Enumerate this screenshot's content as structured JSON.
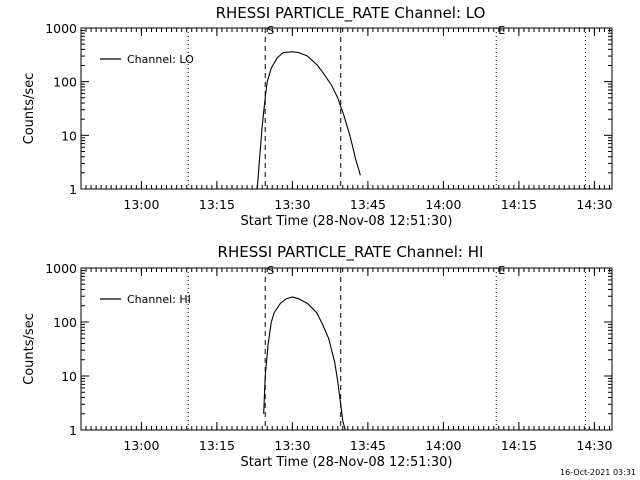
{
  "footer": {
    "timestamp": "16-Oct-2021 03:31"
  },
  "chart_data": [
    {
      "type": "line",
      "title": "RHESSI PARTICLE_RATE Channel: LO",
      "xlabel": "Start Time (28-Nov-08 12:51:30)",
      "ylabel": "Counts/sec",
      "y_scale": "log",
      "ylim": [
        1,
        1000
      ],
      "xlim_minutes": [
        12.8,
        14.5583
      ],
      "x_ticks": [
        {
          "min": 13.0,
          "label": "13:00"
        },
        {
          "min": 13.25,
          "label": "13:15"
        },
        {
          "min": 13.5,
          "label": "13:30"
        },
        {
          "min": 13.75,
          "label": "13:45"
        },
        {
          "min": 14.0,
          "label": "14:00"
        },
        {
          "min": 14.25,
          "label": "14:15"
        },
        {
          "min": 14.5,
          "label": "14:30"
        }
      ],
      "y_ticks": [
        {
          "value": 1,
          "label": "1"
        },
        {
          "value": 10,
          "label": "10"
        },
        {
          "value": 100,
          "label": "100"
        },
        {
          "value": 1000,
          "label": "1000"
        }
      ],
      "legend": {
        "entries": [
          "Channel: LO"
        ],
        "position": "top-left"
      },
      "series": [
        {
          "name": "Channel: LO",
          "x": [
            13.3833,
            13.39,
            13.4,
            13.41,
            13.4167,
            13.43,
            13.45,
            13.47,
            13.5,
            13.52,
            13.55,
            13.5833,
            13.6,
            13.63,
            13.65,
            13.67,
            13.69,
            13.7,
            13.71,
            13.72,
            13.725
          ],
          "y": [
            1,
            3,
            15,
            50,
            100,
            180,
            280,
            350,
            360,
            350,
            300,
            200,
            150,
            85,
            50,
            24,
            10,
            6,
            3.5,
            2.3,
            1.8
          ]
        }
      ],
      "vlines": [
        {
          "x": 13.155,
          "style": "dotted",
          "label": ""
        },
        {
          "x": 13.41,
          "style": "dashed",
          "label": "S"
        },
        {
          "x": 13.66,
          "style": "dashed",
          "label": ""
        },
        {
          "x": 14.175,
          "style": "dotted",
          "label": "E"
        },
        {
          "x": 14.47,
          "style": "dotted",
          "label": ""
        }
      ]
    },
    {
      "type": "line",
      "title": "RHESSI PARTICLE_RATE Channel: HI",
      "xlabel": "Start Time (28-Nov-08 12:51:30)",
      "ylabel": "Counts/sec",
      "y_scale": "log",
      "ylim": [
        1,
        1000
      ],
      "xlim_minutes": [
        12.8,
        14.5583
      ],
      "x_ticks": [
        {
          "min": 13.0,
          "label": "13:00"
        },
        {
          "min": 13.25,
          "label": "13:15"
        },
        {
          "min": 13.5,
          "label": "13:30"
        },
        {
          "min": 13.75,
          "label": "13:45"
        },
        {
          "min": 14.0,
          "label": "14:00"
        },
        {
          "min": 14.25,
          "label": "14:15"
        },
        {
          "min": 14.5,
          "label": "14:30"
        }
      ],
      "y_ticks": [
        {
          "value": 1,
          "label": "1"
        },
        {
          "value": 10,
          "label": "10"
        },
        {
          "value": 100,
          "label": "100"
        },
        {
          "value": 1000,
          "label": "1000"
        }
      ],
      "legend": {
        "entries": [
          "Channel: HI"
        ],
        "position": "top-left"
      },
      "series": [
        {
          "name": "Channel: HI",
          "x": [
            13.405,
            13.41,
            13.42,
            13.43,
            13.44,
            13.46,
            13.48,
            13.5,
            13.52,
            13.55,
            13.58,
            13.6,
            13.62,
            13.64,
            13.65,
            13.66,
            13.6667,
            13.675
          ],
          "y": [
            2,
            10,
            40,
            100,
            150,
            220,
            270,
            290,
            270,
            220,
            150,
            90,
            50,
            18,
            8,
            3,
            1.5,
            1
          ]
        }
      ],
      "vlines": [
        {
          "x": 13.155,
          "style": "dotted",
          "label": ""
        },
        {
          "x": 13.41,
          "style": "dashed",
          "label": "S"
        },
        {
          "x": 13.66,
          "style": "dashed",
          "label": ""
        },
        {
          "x": 14.175,
          "style": "dotted",
          "label": "E"
        },
        {
          "x": 14.47,
          "style": "dotted",
          "label": ""
        }
      ]
    }
  ]
}
